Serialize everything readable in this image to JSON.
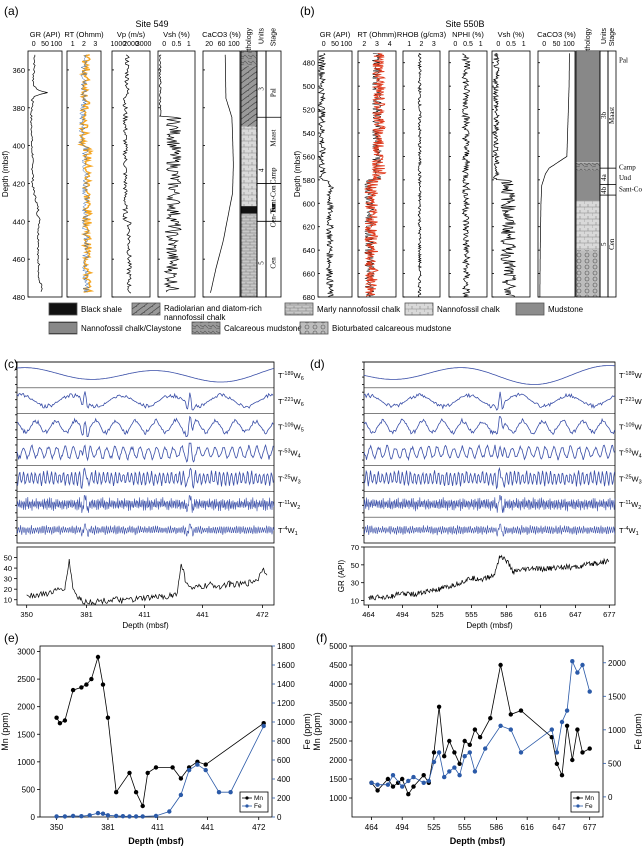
{
  "panels": {
    "a": {
      "label": "(a)",
      "site": "Site 549"
    },
    "b": {
      "label": "(b)",
      "site": "Site 550B"
    },
    "c": {
      "label": "(c)"
    },
    "d": {
      "label": "(d)"
    },
    "e": {
      "label": "(e)"
    },
    "f": {
      "label": "(f)"
    }
  },
  "legend": {
    "items": [
      {
        "label": "Black shale",
        "pattern": "black"
      },
      {
        "label": "Radiolarian and diatom-rich nannofossil chalk",
        "pattern": "radiolarian"
      },
      {
        "label": "Marly nannofossil chalk",
        "pattern": "marly"
      },
      {
        "label": "Nannofossil chalk",
        "pattern": "chalk"
      },
      {
        "label": "Mudstone",
        "pattern": "mud"
      },
      {
        "label": "Nannofossil chalk/Claystone",
        "pattern": "clay"
      },
      {
        "label": "Calcareous mudstone",
        "pattern": "calc"
      },
      {
        "label": "Bioturbated calcareous mudstone",
        "pattern": "bio"
      }
    ]
  },
  "colors": {
    "log": "#000000",
    "rt_a": "#f5a623",
    "rt_b": "#e03c1f",
    "wavelet": "#3a4fa8",
    "fe": "#2b5aa8",
    "mn": "#000000"
  },
  "chart_data": [
    {
      "id": "a",
      "type": "line",
      "title": "Site 549",
      "ylabel": "Depth (mbsf)",
      "y_ticks": [
        360,
        380,
        400,
        420,
        440,
        460,
        480
      ],
      "ylim": [
        350,
        480
      ],
      "tracks": [
        {
          "label": "GR (API)",
          "ticks": [
            "0",
            "50",
            "100"
          ],
          "xlim": [
            0,
            100
          ]
        },
        {
          "label": "RT (Ohmm)",
          "ticks": [
            "1",
            "2",
            "3"
          ],
          "xlim": [
            0.5,
            4
          ]
        },
        {
          "label": "Vp (m/s)",
          "ticks": [
            "1000",
            "2000",
            "3000"
          ],
          "xlim": [
            1000,
            3500
          ]
        },
        {
          "label": "Vsh (%)",
          "ticks": [
            "0",
            "0.5",
            "1"
          ],
          "xlim": [
            0,
            1
          ]
        },
        {
          "label": "CaCO3 (%)",
          "ticks": [
            "20",
            "60",
            "100"
          ],
          "xlim": [
            0,
            100
          ]
        }
      ],
      "column_labels": [
        "Lithology",
        "Units",
        "Stage"
      ],
      "units": [
        "3",
        "4",
        "5"
      ],
      "stages": [
        "Pal",
        "Maast",
        "Camp",
        "Sant-Con",
        "Tur",
        "Cen-Tur",
        "Cen"
      ],
      "series": [
        {
          "name": "GR",
          "track": 0,
          "depth": [
            352,
            360,
            366,
            370,
            372,
            374,
            376,
            378,
            382,
            388,
            394,
            400,
            405,
            410,
            415,
            420,
            425,
            430,
            434,
            436,
            440,
            446,
            452,
            458,
            464,
            470,
            474,
            478
          ],
          "values": [
            20,
            18,
            15,
            22,
            55,
            18,
            12,
            15,
            10,
            9,
            12,
            10,
            14,
            12,
            15,
            13,
            18,
            25,
            30,
            28,
            35,
            30,
            32,
            28,
            33,
            30,
            40,
            38
          ]
        },
        {
          "name": "CaCO3",
          "track": 4,
          "depth": [
            352,
            375,
            385,
            395,
            410,
            425,
            435,
            450,
            465,
            478
          ],
          "values": [
            60,
            62,
            78,
            80,
            82,
            80,
            70,
            55,
            35,
            20
          ]
        }
      ]
    },
    {
      "id": "b",
      "type": "line",
      "title": "Site 550B",
      "ylabel": "Depth (mbsf)",
      "y_ticks": [
        480,
        500,
        520,
        540,
        560,
        580,
        600,
        620,
        640,
        660,
        680
      ],
      "ylim": [
        470,
        680
      ],
      "tracks": [
        {
          "label": "GR (API)",
          "ticks": [
            "0",
            "50",
            "100"
          ],
          "xlim": [
            0,
            100
          ]
        },
        {
          "label": "RT (Ohmm)",
          "ticks": [
            "2",
            "3",
            "4"
          ],
          "xlim": [
            0,
            4
          ]
        },
        {
          "label": "RHOB (g/cm3)",
          "ticks": [
            "1",
            "2",
            "3"
          ],
          "xlim": [
            1,
            3
          ]
        },
        {
          "label": "NPHI (%)",
          "ticks": [
            "0",
            "0.5",
            "1"
          ],
          "xlim": [
            0,
            1
          ]
        },
        {
          "label": "Vsh (%)",
          "ticks": [
            "0",
            "0.5",
            "1"
          ],
          "xlim": [
            0,
            1
          ]
        },
        {
          "label": "CaCO3 (%)",
          "ticks": [
            "0",
            "50",
            "100"
          ],
          "xlim": [
            0,
            100
          ]
        }
      ],
      "column_labels": [
        "Lithology",
        "Units",
        "Stage"
      ],
      "units": [
        "3b",
        "4a",
        "4b",
        "5"
      ],
      "stages": [
        "Pal",
        "Maast",
        "Camp",
        "Und",
        "Sant-Con",
        "Cen"
      ],
      "series": [
        {
          "name": "CaCO3",
          "track": 5,
          "depth": [
            472,
            500,
            520,
            540,
            560,
            570,
            575,
            585,
            600,
            640,
            680
          ],
          "values": [
            85,
            84,
            82,
            80,
            78,
            30,
            20,
            10,
            8,
            6,
            5
          ]
        }
      ]
    },
    {
      "id": "c",
      "type": "line",
      "xlabel": "Depth (mbsf)",
      "ylabel": "GR (API)",
      "x_ticks": [
        350,
        381,
        411,
        441,
        472
      ],
      "xlim": [
        345,
        478
      ],
      "y_ticks": [
        10,
        20,
        30,
        40,
        50
      ],
      "ylim": [
        5,
        60
      ],
      "wavelets": [
        "T-189W6",
        "T-221W6",
        "T-109W5",
        "T-53W4",
        "T-25W3",
        "T-11W2",
        "T-4W1"
      ],
      "series": [
        {
          "name": "GR",
          "x": [
            350,
            355,
            360,
            365,
            370,
            372,
            374,
            376,
            378,
            380,
            385,
            390,
            395,
            400,
            405,
            410,
            415,
            420,
            425,
            428,
            430,
            432,
            435,
            440,
            445,
            450,
            455,
            460,
            465,
            470,
            472,
            475
          ],
          "values": [
            15,
            14,
            16,
            18,
            22,
            48,
            20,
            14,
            10,
            8,
            8,
            9,
            10,
            9,
            10,
            11,
            12,
            13,
            14,
            16,
            45,
            30,
            20,
            22,
            24,
            23,
            25,
            24,
            26,
            30,
            40,
            35
          ]
        }
      ]
    },
    {
      "id": "d",
      "type": "line",
      "xlabel": "Depth (mbsf)",
      "ylabel": "GR (API)",
      "x_ticks": [
        464,
        494,
        525,
        555,
        586,
        616,
        647,
        677
      ],
      "xlim": [
        460,
        682
      ],
      "y_ticks": [
        10,
        30,
        50,
        70
      ],
      "ylim": [
        5,
        70
      ],
      "wavelets": [
        "T-189W6",
        "T-221W6",
        "T-109W5",
        "T-53W4",
        "T-25W3",
        "T-11W2",
        "T-4W1"
      ],
      "series": [
        {
          "name": "GR",
          "x": [
            464,
            475,
            485,
            494,
            505,
            515,
            525,
            535,
            545,
            555,
            565,
            575,
            580,
            586,
            592,
            600,
            610,
            616,
            625,
            635,
            647,
            657,
            667,
            677
          ],
          "values": [
            12,
            14,
            15,
            18,
            17,
            20,
            22,
            25,
            30,
            35,
            34,
            38,
            60,
            55,
            42,
            44,
            46,
            45,
            46,
            48,
            47,
            50,
            52,
            55
          ]
        }
      ]
    },
    {
      "id": "e",
      "type": "line",
      "xlabel": "Depth (mbsf)",
      "ylabel": "Mn (ppm)",
      "y2label": "Fe (ppm)",
      "x_ticks": [
        350,
        381,
        411,
        441,
        472
      ],
      "xlim": [
        340,
        480
      ],
      "y_ticks": [
        0,
        500,
        1000,
        1500,
        2000,
        2500,
        3000
      ],
      "ylim": [
        0,
        3100
      ],
      "y2_ticks": [
        0,
        200,
        400,
        600,
        800,
        1000,
        1200,
        1400,
        1600,
        1800
      ],
      "y2lim": [
        0,
        1800
      ],
      "legend": [
        "Mn",
        "Fe"
      ],
      "series": [
        {
          "name": "Mn",
          "axis": "left",
          "x": [
            350,
            352,
            355,
            360,
            365,
            368,
            371,
            375,
            378,
            381,
            386,
            394,
            398,
            402,
            405,
            410,
            420,
            425,
            430,
            435,
            440,
            475
          ],
          "y": [
            1800,
            1700,
            1750,
            2300,
            2350,
            2400,
            2500,
            2900,
            2400,
            1800,
            450,
            800,
            450,
            200,
            800,
            900,
            900,
            700,
            900,
            1000,
            950,
            1700
          ]
        },
        {
          "name": "Fe",
          "axis": "left",
          "x": [
            350,
            355,
            360,
            365,
            370,
            375,
            378,
            381,
            386,
            390,
            394,
            398,
            402,
            410,
            418,
            425,
            430,
            435,
            440,
            448,
            455,
            475
          ],
          "y": [
            10,
            10,
            20,
            15,
            30,
            70,
            60,
            30,
            20,
            15,
            10,
            10,
            10,
            20,
            100,
            400,
            850,
            950,
            850,
            450,
            450,
            1650
          ]
        }
      ]
    },
    {
      "id": "f",
      "type": "line",
      "xlabel": "Depth (mbsf)",
      "ylabel": "Mn (ppm)",
      "y2label": "Fe (ppm)",
      "x_ticks": [
        464,
        494,
        525,
        555,
        586,
        616,
        647,
        677
      ],
      "xlim": [
        445,
        690
      ],
      "y_ticks": [
        1000,
        1500,
        2000,
        2500,
        3000,
        3500,
        4000,
        4500,
        5000
      ],
      "ylim": [
        500,
        5000
      ],
      "y2_ticks": [
        0,
        500,
        1000,
        1500,
        2000
      ],
      "y2lim": [
        -300,
        2250
      ],
      "legend": [
        "Mn",
        "Fe"
      ],
      "series": [
        {
          "name": "Mn",
          "axis": "left",
          "x": [
            464,
            470,
            480,
            485,
            490,
            494,
            500,
            505,
            515,
            520,
            525,
            530,
            535,
            540,
            545,
            550,
            555,
            560,
            565,
            570,
            580,
            590,
            600,
            610,
            640,
            645,
            650,
            655,
            660,
            665,
            670,
            677
          ],
          "y": [
            1400,
            1200,
            1500,
            1300,
            1400,
            1500,
            1100,
            1300,
            1600,
            1400,
            2200,
            3400,
            2100,
            2500,
            2200,
            1900,
            2500,
            2400,
            2800,
            2600,
            3100,
            4500,
            3200,
            3300,
            2600,
            1900,
            1600,
            2900,
            2000,
            2800,
            2200,
            2300
          ]
        },
        {
          "name": "Fe",
          "axis": "left",
          "x": [
            464,
            470,
            480,
            485,
            494,
            500,
            505,
            515,
            520,
            525,
            530,
            535,
            540,
            545,
            550,
            555,
            560,
            565,
            575,
            590,
            600,
            610,
            640,
            645,
            650,
            655,
            660,
            665,
            670,
            677
          ],
          "y": [
            1400,
            1350,
            1350,
            1600,
            1300,
            1450,
            1550,
            1400,
            1450,
            1950,
            2200,
            1550,
            1700,
            1800,
            1600,
            2100,
            2200,
            1700,
            2300,
            2900,
            2800,
            2200,
            2800,
            2200,
            3000,
            3300,
            4600,
            4300,
            4500,
            3800
          ]
        }
      ]
    }
  ]
}
